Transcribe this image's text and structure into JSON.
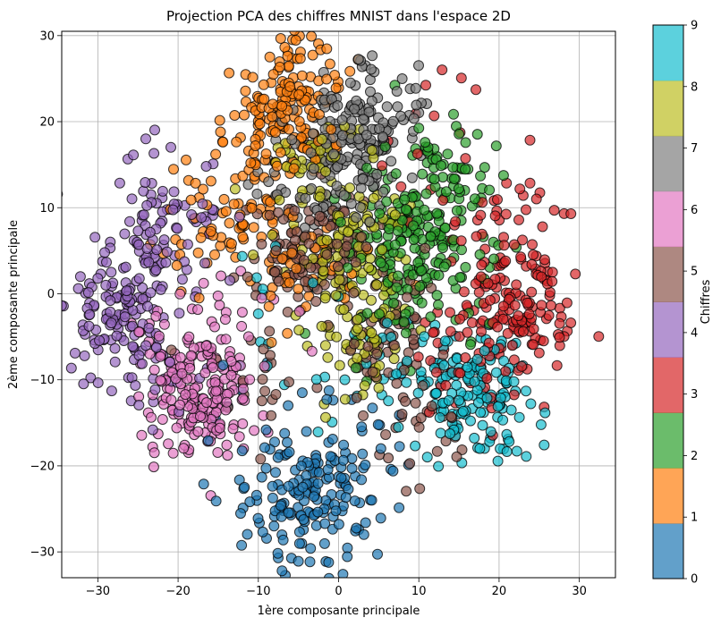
{
  "chart_data": {
    "type": "scatter",
    "title": "Projection PCA des chiffres MNIST dans l'espace 2D",
    "xlabel": "1ère composante principale",
    "ylabel": "2ème composante principale",
    "xlim": [
      -34.5,
      34.5
    ],
    "ylim": [
      -33,
      30.5
    ],
    "xticks": [
      -30,
      -20,
      -10,
      0,
      10,
      20,
      30
    ],
    "yticks": [
      -30,
      -20,
      -10,
      0,
      10,
      20,
      30
    ],
    "xtick_labels": [
      "−30",
      "−20",
      "−10",
      "0",
      "10",
      "20",
      "30"
    ],
    "ytick_labels": [
      "−30",
      "−20",
      "−10",
      "0",
      "10",
      "20",
      "30"
    ],
    "grid": true,
    "colorbar": {
      "label": "Chiffres",
      "ticks": [
        "0",
        "1",
        "2",
        "3",
        "4",
        "5",
        "6",
        "7",
        "8",
        "9"
      ],
      "colors": [
        "#1f77b4",
        "#ff7f0e",
        "#2ca02c",
        "#d62728",
        "#9467bd",
        "#8c564b",
        "#e377c2",
        "#7f7f7f",
        "#bcbd22",
        "#17becf"
      ]
    },
    "series": [
      {
        "label": "0",
        "color": "#1f77b4",
        "clusters": [
          [
            -3,
            -23,
            1,
            100
          ],
          [
            -5,
            -26,
            1,
            60
          ],
          [
            5,
            -16,
            1,
            20
          ],
          [
            -13,
            -17,
            1,
            14
          ]
        ]
      },
      {
        "label": "1",
        "color": "#ff7f0e",
        "clusters": [
          [
            -8,
            19,
            1,
            130
          ],
          [
            -15,
            8,
            1,
            60
          ],
          [
            -5,
            25,
            1,
            55
          ],
          [
            -5,
            4,
            1,
            40
          ]
        ]
      },
      {
        "label": "2",
        "color": "#2ca02c",
        "clusters": [
          [
            9,
            7,
            1,
            130
          ],
          [
            13,
            14,
            1,
            60
          ],
          [
            5,
            0,
            1,
            40
          ],
          [
            15,
            2,
            1,
            30
          ]
        ]
      },
      {
        "label": "3",
        "color": "#d62728",
        "clusters": [
          [
            22,
            -2,
            1,
            140
          ],
          [
            20,
            9,
            1,
            40
          ],
          [
            17,
            -10,
            1,
            30
          ],
          [
            14,
            20,
            1,
            12
          ]
        ]
      },
      {
        "label": "4",
        "color": "#9467bd",
        "clusters": [
          [
            -27,
            -2,
            1,
            120
          ],
          [
            -22,
            8,
            1,
            80
          ],
          [
            -25,
            -8,
            1,
            30
          ]
        ]
      },
      {
        "label": "5",
        "color": "#8c564b",
        "clusters": [
          [
            -3,
            5,
            1,
            120
          ],
          [
            5,
            -5,
            1,
            60
          ],
          [
            10,
            -15,
            1,
            30
          ],
          [
            -10,
            -10,
            1,
            20
          ]
        ]
      },
      {
        "label": "6",
        "color": "#e377c2",
        "clusters": [
          [
            -17,
            -13,
            1,
            150
          ],
          [
            -19,
            -7,
            1,
            50
          ],
          [
            -12,
            -3,
            1,
            20
          ]
        ]
      },
      {
        "label": "7",
        "color": "#7f7f7f",
        "clusters": [
          [
            2,
            17,
            1,
            140
          ],
          [
            5,
            22,
            1,
            40
          ],
          [
            -3,
            12,
            1,
            40
          ]
        ]
      },
      {
        "label": "8",
        "color": "#bcbd22",
        "clusters": [
          [
            1,
            5,
            1,
            90
          ],
          [
            3,
            -5,
            1,
            60
          ],
          [
            -3,
            14,
            1,
            50
          ]
        ]
      },
      {
        "label": "9",
        "color": "#17becf",
        "clusters": [
          [
            18,
            -12,
            1,
            110
          ],
          [
            13,
            -11,
            1,
            50
          ],
          [
            5,
            -9,
            1,
            20
          ],
          [
            -7,
            -2,
            1,
            15
          ]
        ]
      }
    ]
  }
}
